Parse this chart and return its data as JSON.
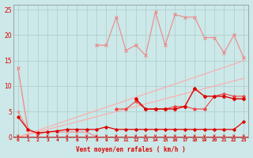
{
  "x": [
    0,
    1,
    2,
    3,
    4,
    5,
    6,
    7,
    8,
    9,
    10,
    11,
    12,
    13,
    14,
    15,
    16,
    17,
    18,
    19,
    20,
    21,
    22,
    23
  ],
  "line_top_zigzag": [
    null,
    null,
    null,
    null,
    null,
    null,
    null,
    null,
    18.0,
    18.0,
    23.5,
    17.0,
    18.0,
    16.0,
    24.5,
    18.0,
    24.0,
    23.5,
    23.5,
    19.5,
    19.5,
    16.5,
    20.0,
    15.5
  ],
  "line_diag_top": [
    0,
    0.65,
    1.3,
    1.95,
    2.6,
    3.25,
    3.9,
    4.55,
    5.2,
    5.85,
    6.5,
    7.15,
    7.8,
    8.45,
    9.1,
    9.75,
    10.4,
    11.05,
    11.7,
    12.35,
    13.0,
    13.65,
    14.3,
    15.0
  ],
  "line_diag_mid": [
    0,
    0.5,
    1.0,
    1.5,
    2.0,
    2.5,
    3.0,
    3.5,
    4.0,
    4.5,
    5.0,
    5.5,
    6.0,
    6.5,
    7.0,
    7.5,
    8.0,
    8.5,
    9.0,
    9.5,
    10.0,
    10.5,
    11.0,
    11.5
  ],
  "line_mid_pink": [
    null,
    null,
    null,
    null,
    null,
    null,
    null,
    null,
    null,
    null,
    5.5,
    5.5,
    7.0,
    5.5,
    5.5,
    5.5,
    6.0,
    6.0,
    5.5,
    5.5,
    8.0,
    8.5,
    8.0,
    8.0
  ],
  "line_main_dark": [
    null,
    null,
    null,
    null,
    null,
    null,
    null,
    null,
    null,
    null,
    null,
    null,
    7.5,
    5.5,
    5.5,
    5.5,
    5.5,
    6.0,
    9.5,
    8.0,
    8.0,
    8.0,
    7.5,
    7.5
  ],
  "line_flat_dark": [
    4.0,
    1.5,
    0.8,
    1.0,
    1.2,
    1.5,
    1.5,
    1.5,
    1.5,
    2.0,
    1.5,
    1.5,
    1.5,
    1.5,
    1.5,
    1.5,
    1.5,
    1.5,
    1.5,
    1.5,
    1.5,
    1.5,
    1.5,
    3.0
  ],
  "line_spike_light": [
    13.5,
    1.5,
    null,
    null,
    null,
    null,
    null,
    null,
    null,
    null,
    null,
    null,
    null,
    null,
    null,
    null,
    null,
    null,
    null,
    null,
    null,
    null,
    null,
    null
  ],
  "line_low_light": [
    5.0,
    1.5,
    0.5,
    1.0,
    1.0,
    1.0,
    1.0,
    1.0,
    0.0,
    null,
    null,
    null,
    null,
    null,
    null,
    null,
    null,
    null,
    null,
    null,
    null,
    null,
    null,
    null
  ],
  "ylim": [
    0,
    26
  ],
  "xlim": [
    -0.5,
    23.5
  ],
  "yticks": [
    0,
    5,
    10,
    15,
    20,
    25
  ],
  "xticks": [
    0,
    1,
    2,
    3,
    4,
    5,
    6,
    7,
    8,
    9,
    10,
    11,
    12,
    13,
    14,
    15,
    16,
    17,
    18,
    19,
    20,
    21,
    22,
    23
  ],
  "xlabel": "Vent moyen/en rafales ( km/h )",
  "bg_color": "#cce8e8",
  "grid_color": "#aacccc",
  "dark_red": "#dd0000",
  "mid_red": "#ee4444",
  "light_red": "#ee8888",
  "lighter_red": "#ffaaaa"
}
